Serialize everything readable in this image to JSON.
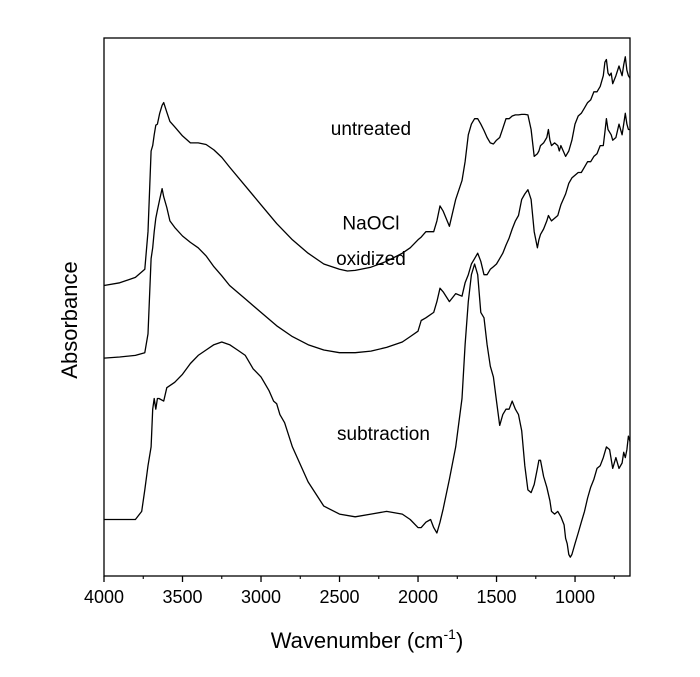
{
  "chart_data": {
    "type": "line",
    "title": "",
    "xlabel": "Wavenumber (cm",
    "xlabel_sup": "-1",
    "xlabel_end": ")",
    "ylabel": "Absorbance",
    "xlim": [
      4000,
      650
    ],
    "x_reversed": true,
    "ylim": [
      0,
      1
    ],
    "y_ticks_shown": false,
    "grid": false,
    "legend": "none",
    "x_ticks": [
      4000,
      3500,
      3000,
      2500,
      2000,
      1500,
      1000
    ],
    "x_tick_labels": [
      "4000",
      "3500",
      "3000",
      "2500",
      "2000",
      "1500",
      "1000"
    ],
    "annotations": [
      {
        "text": "untreated",
        "x": 2300,
        "y": 0.82
      },
      {
        "text": "NaOCl",
        "x": 2300,
        "y": 0.644
      },
      {
        "text": "oxidized",
        "x": 2300,
        "y": 0.578
      },
      {
        "text": "subtraction",
        "x": 2220,
        "y": 0.253
      }
    ],
    "series": [
      {
        "x": [
          4000,
          3900,
          3800,
          3740,
          3720,
          3700,
          3690,
          3680,
          3670,
          3660,
          3645,
          3630,
          3620,
          3600,
          3580,
          3550,
          3500,
          3450,
          3400,
          3350,
          3300,
          3250,
          3200,
          3100,
          3000,
          2900,
          2800,
          2700,
          2600,
          2500,
          2450,
          2400,
          2300,
          2200,
          2100,
          2050,
          2000,
          1980,
          1950,
          1900,
          1880,
          1860,
          1840,
          1800,
          1760,
          1720,
          1700,
          1680,
          1660,
          1640,
          1620,
          1600,
          1580,
          1560,
          1540,
          1520,
          1500,
          1480,
          1460,
          1440,
          1420,
          1400,
          1380,
          1360,
          1340,
          1320,
          1300,
          1280,
          1260,
          1240,
          1230,
          1220,
          1200,
          1180,
          1170,
          1160,
          1150,
          1130,
          1110,
          1100,
          1090,
          1060,
          1040,
          1020,
          1000,
          980,
          960,
          940,
          920,
          900,
          880,
          860,
          840,
          820,
          810,
          800,
          790,
          780,
          770,
          760,
          740,
          720,
          700,
          690,
          680,
          670,
          660,
          650
        ],
        "values": [
          0.54,
          0.545,
          0.555,
          0.57,
          0.64,
          0.79,
          0.8,
          0.82,
          0.838,
          0.84,
          0.86,
          0.875,
          0.88,
          0.862,
          0.845,
          0.835,
          0.818,
          0.805,
          0.805,
          0.802,
          0.792,
          0.778,
          0.76,
          0.725,
          0.69,
          0.655,
          0.625,
          0.6,
          0.58,
          0.57,
          0.567,
          0.568,
          0.574,
          0.585,
          0.6,
          0.61,
          0.625,
          0.63,
          0.64,
          0.64,
          0.66,
          0.688,
          0.678,
          0.65,
          0.7,
          0.735,
          0.77,
          0.82,
          0.84,
          0.85,
          0.85,
          0.84,
          0.828,
          0.815,
          0.805,
          0.803,
          0.81,
          0.815,
          0.832,
          0.85,
          0.85,
          0.855,
          0.857,
          0.857,
          0.858,
          0.858,
          0.857,
          0.83,
          0.78,
          0.785,
          0.79,
          0.8,
          0.805,
          0.815,
          0.83,
          0.81,
          0.8,
          0.805,
          0.8,
          0.79,
          0.8,
          0.78,
          0.79,
          0.81,
          0.84,
          0.855,
          0.86,
          0.87,
          0.88,
          0.885,
          0.9,
          0.9,
          0.91,
          0.93,
          0.955,
          0.96,
          0.935,
          0.93,
          0.935,
          0.915,
          0.93,
          0.948,
          0.93,
          0.95,
          0.965,
          0.94,
          0.93,
          0.925
        ]
      },
      {
        "x": [
          4000,
          3900,
          3800,
          3740,
          3720,
          3700,
          3690,
          3680,
          3670,
          3660,
          3645,
          3630,
          3620,
          3600,
          3580,
          3550,
          3500,
          3450,
          3400,
          3350,
          3300,
          3250,
          3200,
          3100,
          3000,
          2900,
          2800,
          2700,
          2600,
          2500,
          2450,
          2400,
          2300,
          2200,
          2100,
          2050,
          2000,
          1980,
          1950,
          1900,
          1880,
          1860,
          1840,
          1800,
          1760,
          1720,
          1700,
          1680,
          1660,
          1640,
          1620,
          1600,
          1580,
          1560,
          1540,
          1520,
          1500,
          1480,
          1460,
          1440,
          1420,
          1400,
          1380,
          1360,
          1340,
          1320,
          1300,
          1280,
          1260,
          1240,
          1230,
          1220,
          1200,
          1180,
          1170,
          1160,
          1150,
          1130,
          1110,
          1100,
          1090,
          1060,
          1040,
          1020,
          1000,
          980,
          960,
          940,
          920,
          900,
          880,
          860,
          840,
          820,
          810,
          800,
          790,
          780,
          770,
          760,
          740,
          720,
          700,
          690,
          680,
          670,
          660,
          650
        ],
        "values": [
          0.405,
          0.407,
          0.41,
          0.415,
          0.45,
          0.59,
          0.61,
          0.64,
          0.665,
          0.68,
          0.7,
          0.72,
          0.705,
          0.685,
          0.66,
          0.648,
          0.632,
          0.62,
          0.61,
          0.595,
          0.575,
          0.558,
          0.54,
          0.515,
          0.49,
          0.465,
          0.445,
          0.43,
          0.42,
          0.415,
          0.415,
          0.415,
          0.418,
          0.425,
          0.435,
          0.445,
          0.455,
          0.475,
          0.48,
          0.49,
          0.51,
          0.535,
          0.528,
          0.51,
          0.525,
          0.52,
          0.545,
          0.56,
          0.58,
          0.59,
          0.6,
          0.585,
          0.56,
          0.56,
          0.57,
          0.575,
          0.58,
          0.59,
          0.6,
          0.615,
          0.628,
          0.645,
          0.66,
          0.67,
          0.7,
          0.71,
          0.718,
          0.7,
          0.64,
          0.61,
          0.625,
          0.635,
          0.645,
          0.66,
          0.67,
          0.665,
          0.66,
          0.665,
          0.67,
          0.68,
          0.69,
          0.71,
          0.73,
          0.74,
          0.745,
          0.75,
          0.75,
          0.76,
          0.77,
          0.77,
          0.78,
          0.785,
          0.8,
          0.8,
          0.825,
          0.85,
          0.83,
          0.825,
          0.82,
          0.81,
          0.815,
          0.84,
          0.82,
          0.84,
          0.86,
          0.84,
          0.83,
          0.83
        ]
      },
      {
        "x": [
          4000,
          3900,
          3800,
          3760,
          3740,
          3720,
          3700,
          3690,
          3680,
          3670,
          3660,
          3650,
          3620,
          3600,
          3550,
          3500,
          3450,
          3400,
          3350,
          3300,
          3250,
          3200,
          3150,
          3100,
          3050,
          3000,
          2950,
          2920,
          2900,
          2880,
          2850,
          2800,
          2700,
          2600,
          2500,
          2400,
          2300,
          2200,
          2100,
          2050,
          2000,
          1980,
          1950,
          1920,
          1900,
          1880,
          1860,
          1840,
          1800,
          1760,
          1720,
          1700,
          1680,
          1660,
          1640,
          1620,
          1600,
          1580,
          1560,
          1540,
          1520,
          1500,
          1480,
          1460,
          1440,
          1420,
          1400,
          1380,
          1360,
          1340,
          1320,
          1300,
          1280,
          1260,
          1240,
          1230,
          1220,
          1200,
          1180,
          1160,
          1150,
          1130,
          1110,
          1090,
          1070,
          1060,
          1050,
          1040,
          1030,
          1020,
          1000,
          980,
          960,
          940,
          920,
          900,
          880,
          860,
          840,
          820,
          800,
          780,
          760,
          740,
          720,
          700,
          690,
          680,
          670,
          660,
          650
        ],
        "values": [
          0.105,
          0.105,
          0.105,
          0.12,
          0.16,
          0.205,
          0.24,
          0.31,
          0.33,
          0.31,
          0.33,
          0.33,
          0.325,
          0.35,
          0.36,
          0.375,
          0.395,
          0.41,
          0.42,
          0.43,
          0.435,
          0.43,
          0.42,
          0.41,
          0.385,
          0.37,
          0.345,
          0.325,
          0.32,
          0.3,
          0.285,
          0.24,
          0.175,
          0.13,
          0.115,
          0.11,
          0.115,
          0.12,
          0.115,
          0.105,
          0.09,
          0.09,
          0.1,
          0.105,
          0.09,
          0.08,
          0.1,
          0.125,
          0.18,
          0.24,
          0.33,
          0.43,
          0.51,
          0.56,
          0.58,
          0.56,
          0.49,
          0.48,
          0.43,
          0.39,
          0.37,
          0.325,
          0.28,
          0.3,
          0.31,
          0.31,
          0.325,
          0.31,
          0.3,
          0.27,
          0.205,
          0.16,
          0.155,
          0.17,
          0.2,
          0.215,
          0.215,
          0.185,
          0.165,
          0.14,
          0.12,
          0.115,
          0.12,
          0.11,
          0.095,
          0.07,
          0.06,
          0.04,
          0.035,
          0.04,
          0.06,
          0.08,
          0.1,
          0.12,
          0.145,
          0.165,
          0.18,
          0.2,
          0.205,
          0.22,
          0.24,
          0.235,
          0.2,
          0.22,
          0.2,
          0.21,
          0.23,
          0.22,
          0.235,
          0.26,
          0.25
        ]
      }
    ]
  }
}
